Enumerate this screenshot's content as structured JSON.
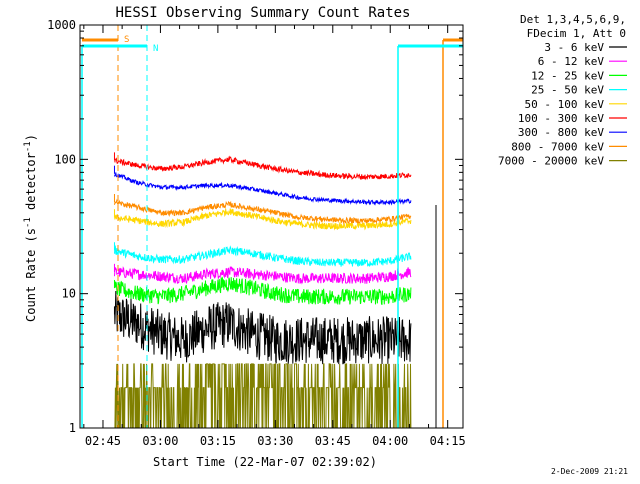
{
  "chart_data": {
    "type": "line",
    "title": "HESSI Observing Summary Count Rates",
    "xlabel": "Start Time (22-Mar-07 02:39:02)",
    "ylabel": "Count Rate (s",
    "ylabel_sup1": "-1",
    "ylabel_mid": " detector",
    "ylabel_sup2": "-1",
    "ylabel_end": ")",
    "yscale": "log",
    "ylim": [
      1,
      1000
    ],
    "xlim_minutes_since_start": [
      0,
      100
    ],
    "x_tick_labels": [
      "02:45",
      "03:00",
      "03:15",
      "03:30",
      "03:45",
      "04:00",
      "04:15"
    ],
    "x_tick_minutes": [
      6,
      21,
      36,
      51,
      66,
      81,
      96
    ],
    "y_tick_labels": [
      "1",
      "10",
      "100",
      "1000"
    ],
    "y_tick_values": [
      1,
      10,
      100,
      1000
    ],
    "legend": {
      "header_line1": "Det 1,3,4,5,6,9,",
      "header_line2": "FDecim 1, Att 0",
      "placement": "right"
    },
    "flags": {
      "s_label": "S",
      "n_label": "N"
    },
    "x_sample_minutes": [
      9,
      15,
      21,
      27,
      33,
      39,
      45,
      51,
      57,
      63,
      69,
      75,
      81,
      86.5
    ],
    "series": [
      {
        "name": "3 - 6 keV",
        "color": "#000000",
        "noise": 0.18,
        "values": [
          7.0,
          6.0,
          5.0,
          4.5,
          5.5,
          6.0,
          5.0,
          4.5,
          4.5,
          4.5,
          4.5,
          4.5,
          4.5,
          4.5
        ]
      },
      {
        "name": "6 - 12 keV",
        "color": "#ff00ff",
        "noise": 0.04,
        "values": [
          14.5,
          14.0,
          13.5,
          13.0,
          14.0,
          14.5,
          14.0,
          13.5,
          13.0,
          13.0,
          13.0,
          13.0,
          13.5,
          14.5
        ]
      },
      {
        "name": "12 - 25 keV",
        "color": "#00ff00",
        "noise": 0.06,
        "values": [
          11.0,
          10.0,
          9.5,
          10.0,
          11.0,
          12.0,
          11.0,
          10.0,
          9.5,
          9.5,
          9.5,
          9.5,
          9.5,
          10.0
        ]
      },
      {
        "name": "25 - 50 keV",
        "color": "#00ffff",
        "noise": 0.03,
        "values": [
          21.0,
          19.0,
          18.0,
          18.0,
          19.5,
          21.0,
          20.0,
          18.5,
          17.5,
          17.0,
          17.0,
          17.0,
          17.5,
          19.0
        ]
      },
      {
        "name": "50 - 100 keV",
        "color": "#ffd700",
        "noise": 0.025,
        "values": [
          37.0,
          35.0,
          33.0,
          34.0,
          38.0,
          41.0,
          38.0,
          35.0,
          33.0,
          32.0,
          32.0,
          32.0,
          33.0,
          35.0
        ]
      },
      {
        "name": "100 - 300 keV",
        "color": "#ff0000",
        "noise": 0.02,
        "values": [
          98.0,
          90.0,
          85.0,
          88.0,
          95.0,
          100.0,
          92.0,
          85.0,
          80.0,
          77.0,
          75.0,
          74.0,
          75.0,
          77.0
        ]
      },
      {
        "name": "300 - 800 keV",
        "color": "#0000ff",
        "noise": 0.015,
        "values": [
          78.0,
          67.0,
          62.0,
          62.0,
          64.0,
          64.0,
          60.0,
          56.0,
          52.0,
          50.0,
          49.0,
          48.0,
          48.0,
          49.0
        ]
      },
      {
        "name": "800 - 7000 keV",
        "color": "#ff8c00",
        "noise": 0.02,
        "values": [
          48.0,
          44.0,
          40.0,
          40.0,
          44.0,
          46.0,
          43.0,
          40.0,
          37.0,
          36.0,
          35.0,
          35.0,
          36.0,
          38.0
        ]
      },
      {
        "name": "7000 - 20000 keV",
        "color": "#808000",
        "noise": 0.0,
        "values": [
          2.0,
          2.0,
          2.0,
          2.0,
          2.0,
          2.0,
          2.0,
          2.0,
          2.0,
          2.0,
          2.0,
          2.0,
          2.0,
          2.0
        ]
      }
    ]
  },
  "footer": {
    "date_stamp": "2-Dec-2009 21:21"
  }
}
